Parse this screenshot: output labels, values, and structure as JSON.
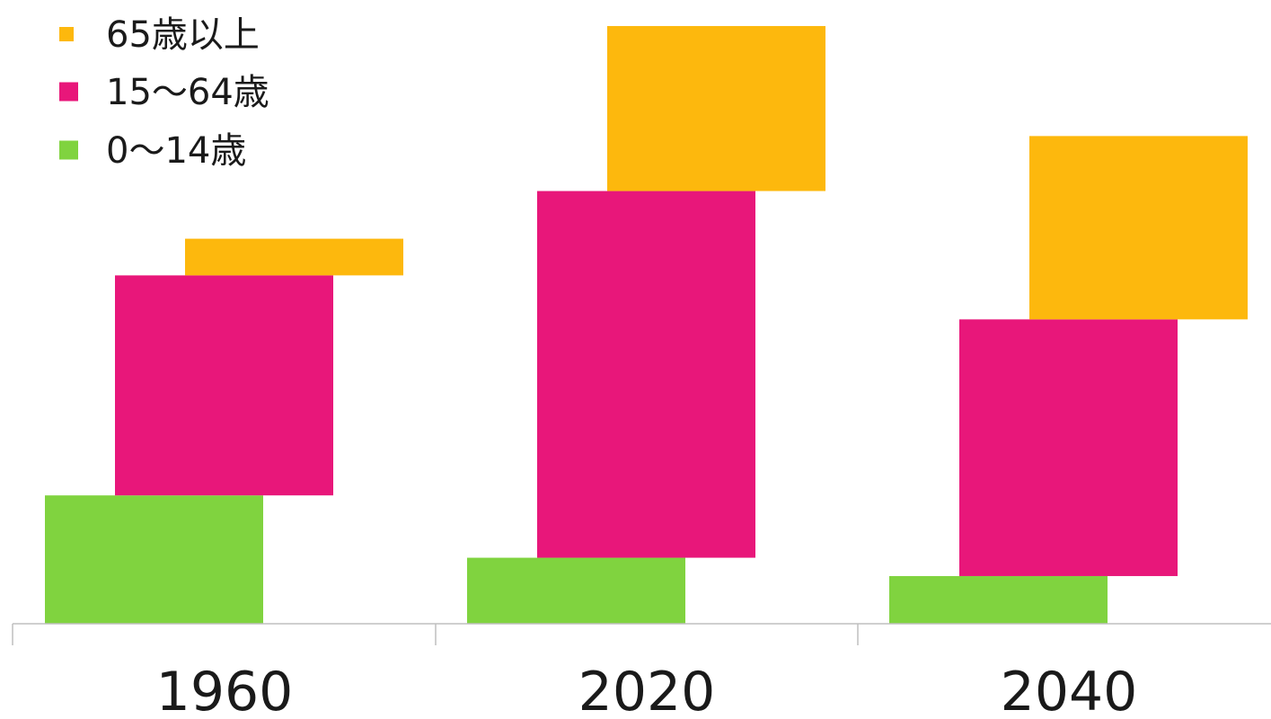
{
  "chart_data": {
    "type": "bar",
    "stacked": true,
    "title": "",
    "xlabel": "",
    "ylabel": "",
    "categories": [
      "1960",
      "2020",
      "2040"
    ],
    "series": [
      {
        "name": "0〜14歳",
        "color": "#80D33F",
        "values": [
          35,
          18,
          13
        ]
      },
      {
        "name": "15〜64歳",
        "color": "#E8177A",
        "values": [
          60,
          100,
          70
        ]
      },
      {
        "name": "65歳以上",
        "color": "#FDB80D",
        "values": [
          10,
          45,
          50
        ]
      }
    ],
    "legend": {
      "position": "top-left",
      "order": [
        "65歳以上",
        "15〜64歳",
        "0〜14歳"
      ]
    },
    "grid": false,
    "ylim": [
      0,
      163
    ]
  }
}
